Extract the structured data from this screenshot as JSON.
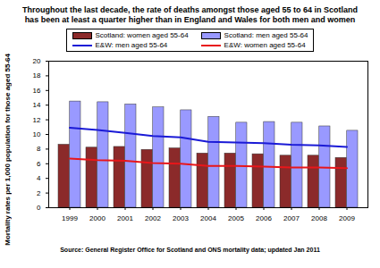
{
  "chart_data": {
    "type": "bar",
    "title": "Throughout the last decade, the rate of deaths amongst those aged 55 to 64 in Scotland has been at least a quarter higher than in England and Wales for both men and women",
    "y_label": "Mortality rates per 1,000 population for those aged 55-64",
    "source": "Source: General Register Office for Scotland and ONS mortality data; updated Jan 2011",
    "categories": [
      "1999",
      "2000",
      "2001",
      "2002",
      "2003",
      "2004",
      "2005",
      "2006",
      "2007",
      "2008",
      "2009"
    ],
    "series": [
      {
        "name": "Scotland: women aged 55-64",
        "type": "bar",
        "color": "#8b2a2a",
        "values": [
          8.6,
          8.2,
          8.3,
          7.9,
          8.1,
          7.4,
          7.4,
          7.3,
          7.1,
          7.1,
          6.8
        ]
      },
      {
        "name": "Scotland: men aged 55-64",
        "type": "bar",
        "color": "#9999ff",
        "values": [
          14.5,
          14.4,
          14.1,
          13.7,
          13.3,
          12.4,
          11.6,
          11.7,
          11.6,
          11.1,
          10.5
        ]
      },
      {
        "name": "E&W: men aged 55-64",
        "type": "line",
        "color": "#1a1ad6",
        "values": [
          10.9,
          10.6,
          10.2,
          9.8,
          9.6,
          9.0,
          8.9,
          8.8,
          8.6,
          8.5,
          8.3
        ]
      },
      {
        "name": "E&W: women aged 55-64",
        "type": "line",
        "color": "#e8161a",
        "values": [
          6.7,
          6.5,
          6.4,
          6.1,
          6.0,
          5.7,
          5.7,
          5.6,
          5.5,
          5.5,
          5.4
        ]
      }
    ],
    "ylim": [
      0,
      20
    ],
    "yticks": [
      0,
      2,
      4,
      6,
      8,
      10,
      12,
      14,
      16,
      18,
      20
    ],
    "grid": false,
    "legend": "top"
  }
}
